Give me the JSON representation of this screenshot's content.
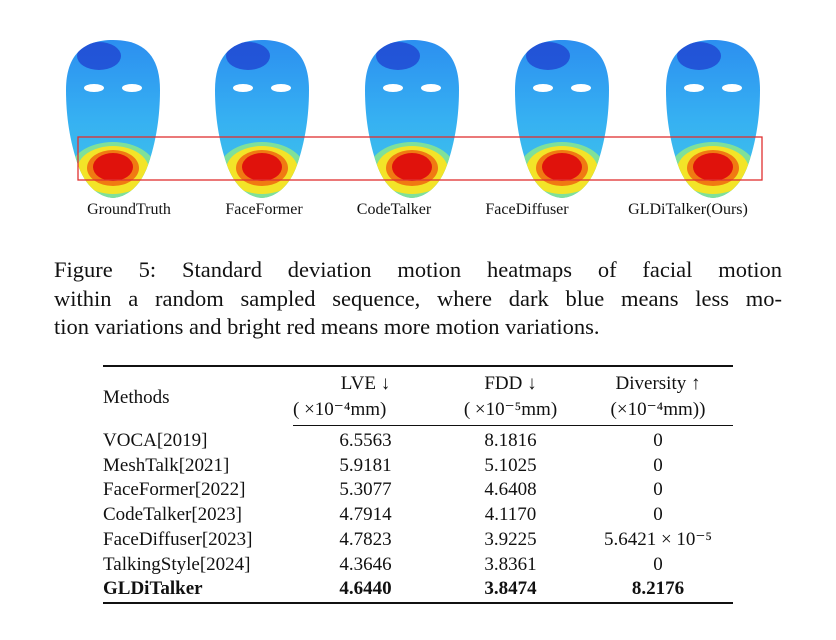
{
  "figure": {
    "labels": [
      "GroundTruth",
      "FaceFormer",
      "CodeTalker",
      "FaceDiffuser",
      "GLDiTalker(Ours)"
    ],
    "caption_lines": [
      "Figure 5:  Standard deviation motion heatmaps of facial motion",
      "within a random sampled sequence, where dark blue means less mo-",
      "tion variations and bright red means more motion variations."
    ]
  },
  "table": {
    "header": [
      [
        "Methods"
      ],
      [
        "LVE ↓",
        "( ×10⁻⁴mm)"
      ],
      [
        "FDD ↓",
        "( ×10⁻⁵mm)"
      ],
      [
        "Diversity ↑",
        "(×10⁻⁴mm))"
      ]
    ],
    "rows": [
      [
        "VOCA[2019]",
        "6.5563",
        "8.1816",
        "0"
      ],
      [
        "MeshTalk[2021]",
        "5.9181",
        "5.1025",
        "0"
      ],
      [
        "FaceFormer[2022]",
        "5.3077",
        "4.6408",
        "0"
      ],
      [
        "CodeTalker[2023]",
        "4.7914",
        "4.1170",
        "0"
      ],
      [
        "FaceDiffuser[2023]",
        "4.7823",
        "3.9225",
        "5.6421 × 10⁻⁵"
      ],
      [
        "TalkingStyle[2024]",
        "4.3646",
        "3.8361",
        "0"
      ],
      [
        "GLDiTalker",
        "4.6440",
        "3.8474",
        "8.2176"
      ]
    ]
  }
}
